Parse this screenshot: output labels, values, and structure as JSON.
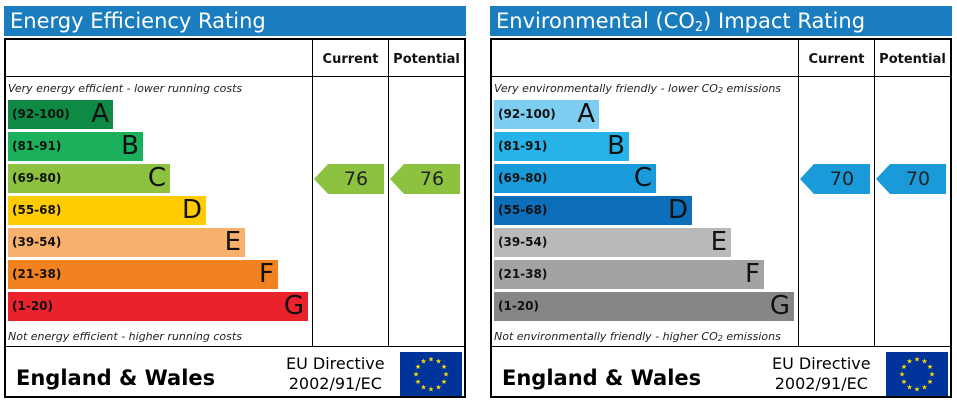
{
  "chart_data": [
    {
      "type": "bar",
      "title": "Energy Efficiency Rating",
      "column_headers": [
        "Current",
        "Potential"
      ],
      "top_note": "Very energy efficient - lower running costs",
      "bottom_note": "Not energy efficient - higher running costs",
      "bands": [
        {
          "range": "(92-100)",
          "letter": "A",
          "color": "#0e8a45",
          "text_color": "#111111",
          "length": 0.35
        },
        {
          "range": "(81-91)",
          "letter": "B",
          "color": "#1bb05b",
          "text_color": "#111111",
          "length": 0.45
        },
        {
          "range": "(69-80)",
          "letter": "C",
          "color": "#8cc23f",
          "text_color": "#111111",
          "length": 0.54
        },
        {
          "range": "(55-68)",
          "letter": "D",
          "color": "#ffcc01",
          "text_color": "#111111",
          "length": 0.66
        },
        {
          "range": "(39-54)",
          "letter": "E",
          "color": "#f8b06d",
          "text_color": "#111111",
          "length": 0.79
        },
        {
          "range": "(21-38)",
          "letter": "F",
          "color": "#f1821f",
          "text_color": "#111111",
          "length": 0.9
        },
        {
          "range": "(1-20)",
          "letter": "G",
          "color": "#e9222c",
          "text_color": "#111111",
          "length": 1.0
        }
      ],
      "current": {
        "value": 76,
        "band": "C",
        "color": "#8cc23f"
      },
      "potential": {
        "value": 76,
        "band": "C",
        "color": "#8cc23f"
      },
      "footer": {
        "country": "England & Wales",
        "directive_line1": "EU Directive",
        "directive_line2": "2002/91/EC"
      }
    },
    {
      "type": "bar",
      "title_parts": [
        "Environmental (CO",
        "2",
        ") Impact Rating"
      ],
      "column_headers": [
        "Current",
        "Potential"
      ],
      "top_note_parts": [
        "Very environmentally friendly - lower CO",
        "2",
        " emissions"
      ],
      "bottom_note_parts": [
        "Not environmentally friendly - higher CO",
        "2",
        " emissions"
      ],
      "bands": [
        {
          "range": "(92-100)",
          "letter": "A",
          "color": "#7dcdf1",
          "text_color": "#111111",
          "length": 0.35
        },
        {
          "range": "(81-91)",
          "letter": "B",
          "color": "#26b4e8",
          "text_color": "#111111",
          "length": 0.45
        },
        {
          "range": "(69-80)",
          "letter": "C",
          "color": "#1a9ad8",
          "text_color": "#111111",
          "length": 0.54
        },
        {
          "range": "(55-68)",
          "letter": "D",
          "color": "#0d6fb9",
          "text_color": "#111111",
          "length": 0.66
        },
        {
          "range": "(39-54)",
          "letter": "E",
          "color": "#b9b9b9",
          "text_color": "#111111",
          "length": 0.79
        },
        {
          "range": "(21-38)",
          "letter": "F",
          "color": "#a3a3a3",
          "text_color": "#111111",
          "length": 0.9
        },
        {
          "range": "(1-20)",
          "letter": "G",
          "color": "#868686",
          "text_color": "#111111",
          "length": 1.0
        }
      ],
      "current": {
        "value": 70,
        "band": "C",
        "color": "#1a9ad8"
      },
      "potential": {
        "value": 70,
        "band": "C",
        "color": "#1a9ad8"
      },
      "footer": {
        "country": "England & Wales",
        "directive_line1": "EU Directive",
        "directive_line2": "2002/91/EC"
      }
    }
  ]
}
